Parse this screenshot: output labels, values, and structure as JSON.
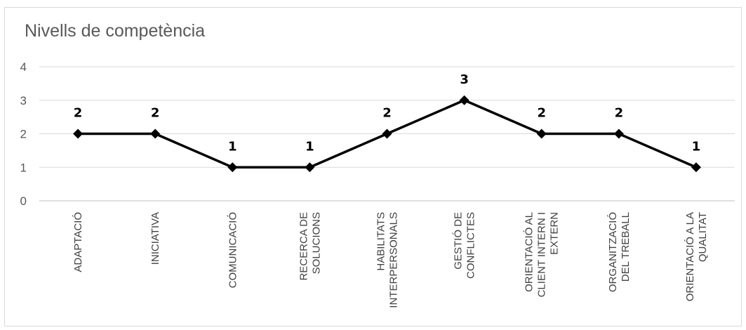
{
  "chart_data": {
    "type": "line",
    "title": "Nivells de competència",
    "categories": [
      [
        "ADAPTACIÓ"
      ],
      [
        "INICIATIVA"
      ],
      [
        "COMUNICACIÓ"
      ],
      [
        "RECERCA DE",
        "SOLUCIONS"
      ],
      [
        "HABILITATS",
        "INTERPERSONALS"
      ],
      [
        "GESTIÓ DE",
        "CONFLICTES"
      ],
      [
        "ORIENTACIÓ AL",
        "CLIENT INTERN I",
        "EXTERN"
      ],
      [
        "ORGANITZACIÓ",
        "DEL TREBALL"
      ],
      [
        "ORIENTACIÓ A LA",
        "QUALITAT"
      ]
    ],
    "series": [
      {
        "values": [
          2,
          2,
          1,
          1,
          2,
          3,
          2,
          2,
          1
        ]
      }
    ],
    "ylim": [
      0,
      4
    ],
    "yticks": [
      0,
      1,
      2,
      3,
      4
    ],
    "data_labels": true,
    "grid": "horizontal",
    "line_color": "#000000",
    "marker": "diamond",
    "grid_color": "#d9d9d9",
    "axis_color": "#bfbfbf"
  }
}
